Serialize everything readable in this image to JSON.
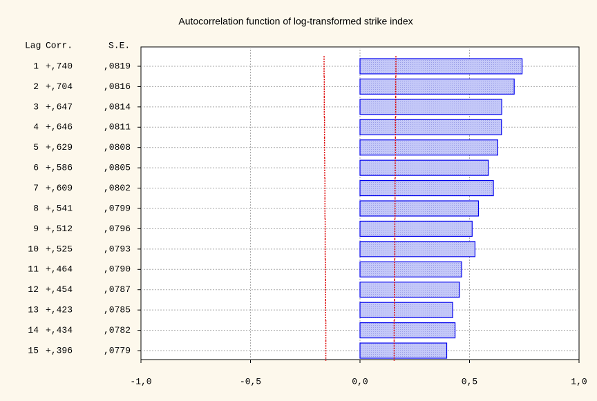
{
  "chart_data": {
    "type": "bar",
    "orientation": "horizontal",
    "title": "Autocorrelation function of log-transformed strike index",
    "columns": [
      "Lag",
      "Corr.",
      "S.E."
    ],
    "categories": [
      "1",
      "2",
      "3",
      "4",
      "5",
      "6",
      "7",
      "8",
      "9",
      "10",
      "11",
      "12",
      "13",
      "14",
      "15"
    ],
    "values": [
      0.74,
      0.704,
      0.647,
      0.646,
      0.629,
      0.586,
      0.609,
      0.541,
      0.512,
      0.525,
      0.464,
      0.454,
      0.423,
      0.434,
      0.396
    ],
    "value_labels": [
      "+,740",
      "+,704",
      "+,647",
      "+,646",
      "+,629",
      "+,586",
      "+,609",
      "+,541",
      "+,512",
      "+,525",
      "+,464",
      "+,454",
      "+,423",
      "+,434",
      "+,396"
    ],
    "se": {
      "values": [
        0.0819,
        0.0816,
        0.0814,
        0.0811,
        0.0808,
        0.0805,
        0.0802,
        0.0799,
        0.0796,
        0.0793,
        0.079,
        0.0787,
        0.0785,
        0.0782,
        0.0779
      ],
      "value_labels": [
        ",0819",
        ",0816",
        ",0814",
        ",0811",
        ",0808",
        ",0805",
        ",0802",
        ",0799",
        ",0796",
        ",0793",
        ",0790",
        ",0787",
        ",0785",
        ",0782",
        ",0779"
      ]
    },
    "upper_limit": [
      0.164,
      0.163,
      0.163,
      0.162,
      0.162,
      0.161,
      0.16,
      0.16,
      0.159,
      0.159,
      0.158,
      0.157,
      0.157,
      0.156,
      0.156
    ],
    "lower_limit": [
      -0.164,
      -0.163,
      -0.163,
      -0.162,
      -0.162,
      -0.161,
      -0.16,
      -0.16,
      -0.159,
      -0.159,
      -0.158,
      -0.157,
      -0.157,
      -0.156,
      -0.156
    ],
    "color": "#b4b8f4",
    "edge_color": "#0000ee",
    "limit_color": "#dd0000",
    "xlim": [
      -1,
      1
    ],
    "xticks": [
      {
        "value": -1,
        "label": "-1,0"
      },
      {
        "value": -0.5,
        "label": "-0,5"
      },
      {
        "value": 0,
        "label": "0,0"
      },
      {
        "value": 0.5,
        "label": "0,5"
      },
      {
        "value": 1,
        "label": "1,0"
      }
    ],
    "grid": true
  }
}
